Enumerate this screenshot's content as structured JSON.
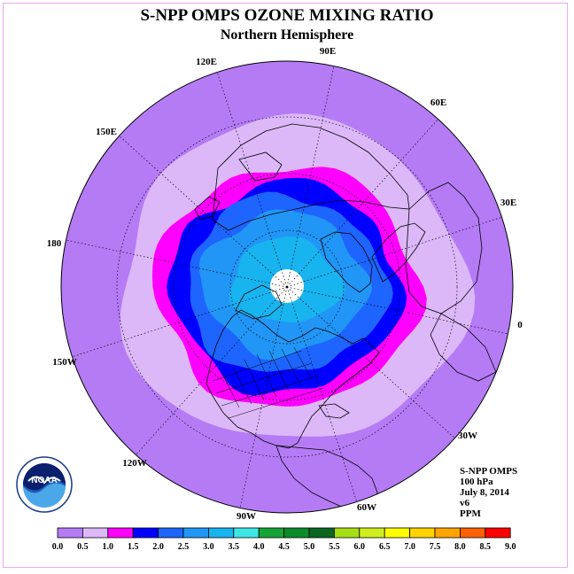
{
  "title": "S-NPP OMPS OZONE MIXING RATIO",
  "subtitle": "Northern Hemisphere",
  "longitude_labels": [
    "90E",
    "60E",
    "30E",
    "0",
    "30W",
    "60W",
    "90W",
    "120W",
    "150W",
    "180",
    "150E",
    "120E"
  ],
  "info": {
    "line1": "S-NPP OMPS",
    "line2": "100 hPa",
    "line3": "July 8, 2014",
    "line4": "v6",
    "line5": "PPM"
  },
  "logo": {
    "text": "NOAA",
    "ring_text": "NATIONAL OCEANIC AND ATMOSPHERIC ADMINISTRATION · U.S. DEPARTMENT OF COMMERCE"
  },
  "colorbar": {
    "ticks": [
      "0.0",
      "0.5",
      "1.0",
      "1.5",
      "2.0",
      "2.5",
      "3.0",
      "3.5",
      "4.0",
      "4.5",
      "5.0",
      "5.5",
      "6.0",
      "6.5",
      "7.0",
      "7.5",
      "8.0",
      "8.5",
      "9.0"
    ],
    "colors": [
      "#b57bf5",
      "#dcb8f9",
      "#ff00ff",
      "#0000ff",
      "#1e64ff",
      "#2196f7",
      "#18b4f0",
      "#3ee6e6",
      "#16a336",
      "#0b8a2a",
      "#0a6620",
      "#a6de16",
      "#cfee1e",
      "#ffff00",
      "#ffd200",
      "#ffa500",
      "#ff6000",
      "#ff0000",
      "#8c5a3c"
    ]
  },
  "contour_colors": {
    "outer": "#b57bf5",
    "band_0_5": "#dcb8f9",
    "band_1_0": "#ff00ff",
    "band_1_5": "#0000ff",
    "band_2_0": "#1e64ff",
    "band_2_5": "#2196f7",
    "band_3_0": "#18b4f0",
    "pole_cap": "#ffffff"
  }
}
